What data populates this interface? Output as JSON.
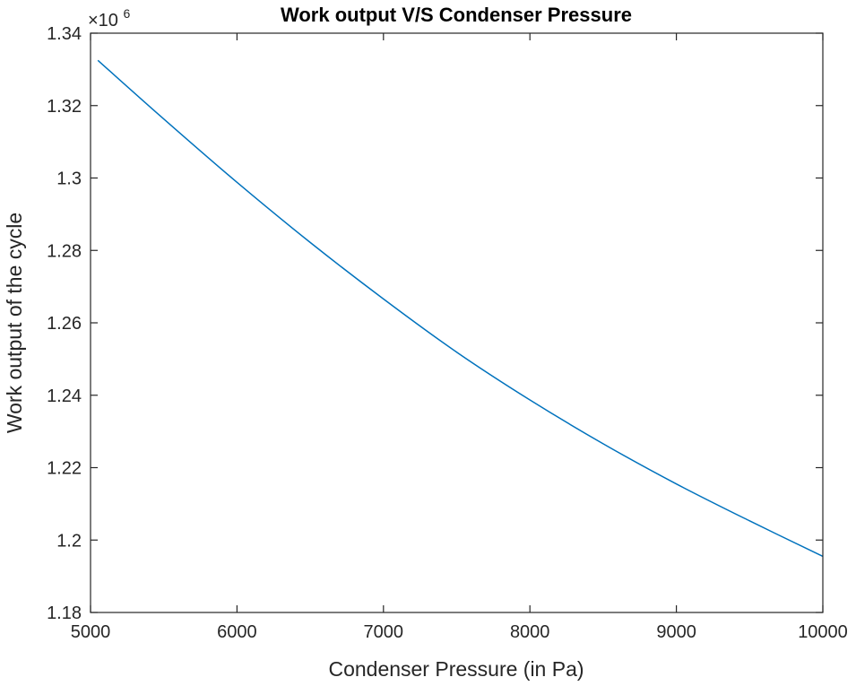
{
  "chart_data": {
    "type": "line",
    "title": "Work output V/S Condenser Pressure",
    "xlabel": "Condenser Pressure (in Pa)",
    "ylabel": "Work output of the cycle",
    "y_exponent_base": "×10",
    "y_exponent_power": "6",
    "xlim": [
      5000,
      10000
    ],
    "ylim": [
      1.18,
      1.34
    ],
    "xticks": [
      5000,
      6000,
      7000,
      8000,
      9000,
      10000
    ],
    "xtick_labels": [
      "5000",
      "6000",
      "7000",
      "8000",
      "9000",
      "10000"
    ],
    "yticks": [
      1.18,
      1.2,
      1.22,
      1.24,
      1.26,
      1.28,
      1.3,
      1.32,
      1.34
    ],
    "ytick_labels": [
      "1.18",
      "1.2",
      "1.22",
      "1.24",
      "1.26",
      "1.28",
      "1.3",
      "1.32",
      "1.34"
    ],
    "grid": false,
    "series": [
      {
        "name": "Work output",
        "color": "#0072BD",
        "x": [
          5050,
          5500,
          6000,
          6500,
          7000,
          7500,
          8000,
          8500,
          9000,
          9500,
          10000
        ],
        "values": [
          1.3325,
          1.3163,
          1.2988,
          1.2822,
          1.2666,
          1.2519,
          1.2387,
          1.2266,
          1.2155,
          1.2053,
          1.1955
        ]
      }
    ]
  }
}
